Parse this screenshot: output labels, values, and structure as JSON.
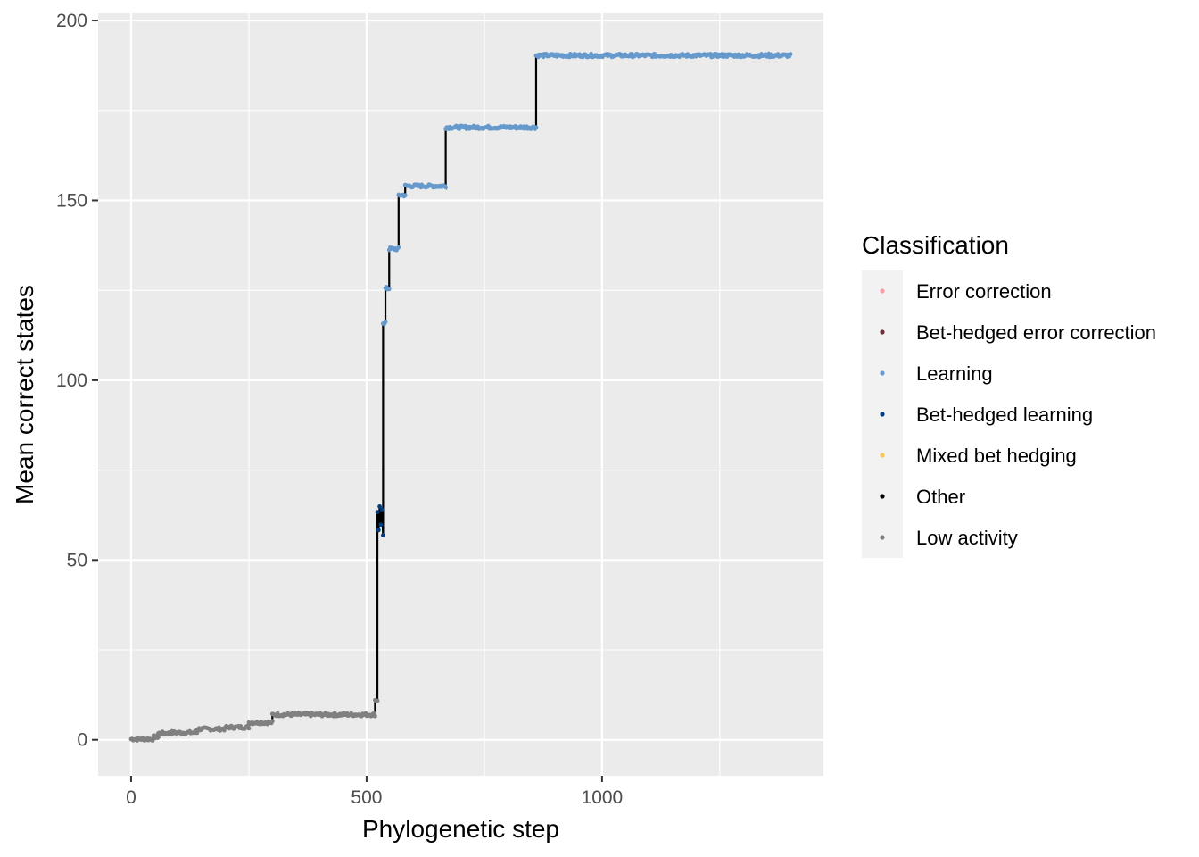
{
  "chart_data": {
    "type": "scatter",
    "xlabel": "Phylogenetic step",
    "ylabel": "Mean correct states",
    "xlim": [
      -70,
      1470
    ],
    "ylim": [
      -10,
      202
    ],
    "x_ticks": [
      0,
      500,
      1000
    ],
    "y_ticks": [
      0,
      50,
      100,
      150,
      200
    ],
    "x_tick_labels": [
      "0",
      "500",
      "1000"
    ],
    "y_tick_labels": [
      "0",
      "50",
      "100",
      "150",
      "200"
    ],
    "grid": true,
    "legend": {
      "title": "Classification",
      "placement": "right",
      "entries": [
        {
          "label": "Error correction",
          "color": "#f4a0a7"
        },
        {
          "label": "Bet-hedged error correction",
          "color": "#6b2f3a"
        },
        {
          "label": "Learning",
          "color": "#6699cc"
        },
        {
          "label": "Bet-hedged learning",
          "color": "#003d7a"
        },
        {
          "label": "Mixed bet hedging",
          "color": "#f7c65a"
        },
        {
          "label": "Other",
          "color": "#000000"
        },
        {
          "label": "Low activity",
          "color": "#808080"
        }
      ]
    },
    "line_color": "#000000",
    "series": [
      {
        "name": "Low activity",
        "color": "#808080",
        "segments": [
          {
            "x": [
              0,
              48
            ],
            "y": 0.2
          },
          {
            "x": [
              48,
              58
            ],
            "y": 0.8
          },
          {
            "x": [
              58,
              80
            ],
            "y": 1.8
          },
          {
            "x": [
              80,
              140
            ],
            "y": 2.0
          },
          {
            "x": [
              140,
              200
            ],
            "y": 3.0
          },
          {
            "x": [
              200,
              250
            ],
            "y": 3.5
          },
          {
            "x": [
              250,
              300
            ],
            "y": 4.8
          },
          {
            "x": [
              300,
              518
            ],
            "y": 7.0
          },
          {
            "x": [
              518,
              523
            ],
            "y": 11.0
          }
        ]
      },
      {
        "name": "Bet-hedged learning",
        "color": "#003d7a",
        "segments": [
          {
            "x": [
              523,
              535
            ],
            "y": 61.0
          }
        ]
      },
      {
        "name": "Learning",
        "color": "#6699cc",
        "segments": [
          {
            "x": [
              535,
              540
            ],
            "y": 116.0
          },
          {
            "x": [
              540,
              548
            ],
            "y": 125.5
          },
          {
            "x": [
              548,
              568
            ],
            "y": 136.5
          },
          {
            "x": [
              568,
              582
            ],
            "y": 151.5
          },
          {
            "x": [
              582,
              668
            ],
            "y": 154.0
          },
          {
            "x": [
              668,
              860
            ],
            "y": 170.3
          },
          {
            "x": [
              860,
              1400
            ],
            "y": 190.3
          }
        ]
      }
    ]
  }
}
